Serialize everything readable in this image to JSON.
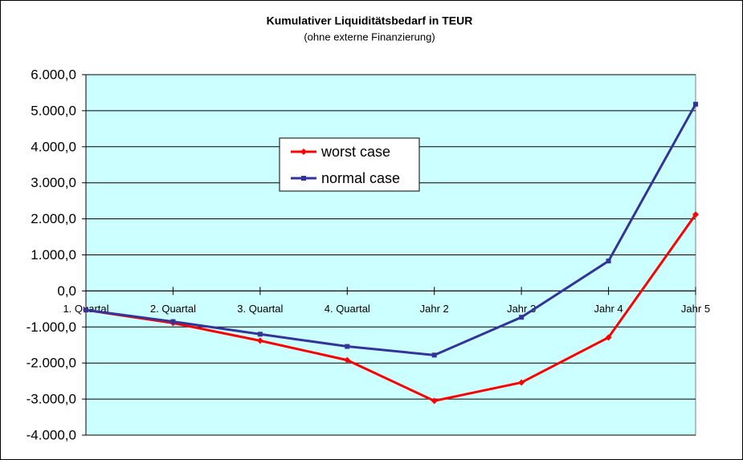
{
  "chart_data": {
    "type": "line",
    "title": "Kumulativer Liquiditätsbedarf in TEUR",
    "subtitle": "(ohne externe Finanzierung)",
    "categories": [
      "1. Quartal",
      "2. Quartal",
      "3. Quartal",
      "4. Quartal",
      "Jahr 2",
      "Jahr 3",
      "Jahr 4",
      "Jahr 5"
    ],
    "series": [
      {
        "name": "worst case",
        "color": "#ff0000",
        "marker": "diamond",
        "values": [
          -530,
          -890,
          -1380,
          -1920,
          -3050,
          -2540,
          -1290,
          2120
        ]
      },
      {
        "name": "normal case",
        "color": "#333399",
        "marker": "square",
        "values": [
          -530,
          -850,
          -1200,
          -1540,
          -1780,
          -730,
          830,
          5180
        ]
      }
    ],
    "ylim": [
      -4000,
      6000
    ],
    "yticks": [
      {
        "value": -4000,
        "label": "-4.000,0"
      },
      {
        "value": -3000,
        "label": "-3.000,0"
      },
      {
        "value": -2000,
        "label": "-2.000,0"
      },
      {
        "value": -1000,
        "label": "-1.000,0"
      },
      {
        "value": 0,
        "label": "0,0"
      },
      {
        "value": 1000,
        "label": "1.000,0"
      },
      {
        "value": 2000,
        "label": "2.000,0"
      },
      {
        "value": 3000,
        "label": "3.000,0"
      },
      {
        "value": 4000,
        "label": "4.000,0"
      },
      {
        "value": 5000,
        "label": "5.000,0"
      },
      {
        "value": 6000,
        "label": "6.000,0"
      }
    ],
    "grid": true
  }
}
